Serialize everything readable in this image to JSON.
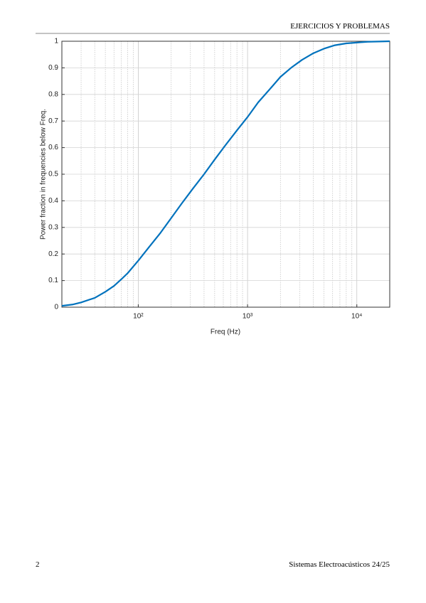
{
  "header": {
    "title": "EJERCICIOS Y PROBLEMAS"
  },
  "footer": {
    "page": "2",
    "course": "Sistemas Electroacústicos 24/25"
  },
  "chart_data": {
    "type": "line",
    "xlabel": "Freq (Hz)",
    "ylabel": "Power fraction in frequencies below Freq.",
    "log_x": true,
    "grid": true,
    "xlim": [
      20,
      20000
    ],
    "ylim": [
      0,
      1
    ],
    "xticks": [
      {
        "value": 100,
        "label": "10²"
      },
      {
        "value": 1000,
        "label": "10³"
      },
      {
        "value": 10000,
        "label": "10⁴"
      }
    ],
    "xminor_ticks": [
      20,
      30,
      40,
      50,
      60,
      70,
      80,
      90,
      200,
      300,
      400,
      500,
      600,
      700,
      800,
      900,
      2000,
      3000,
      4000,
      5000,
      6000,
      7000,
      8000,
      9000,
      20000
    ],
    "yticks": [
      0,
      0.1,
      0.2,
      0.3,
      0.4,
      0.5,
      0.6,
      0.7,
      0.8,
      0.9,
      1
    ],
    "x": [
      20,
      25,
      30,
      40,
      50,
      60,
      70,
      80,
      100,
      125,
      160,
      200,
      250,
      315,
      400,
      500,
      630,
      800,
      1000,
      1250,
      1600,
      2000,
      2500,
      3150,
      4000,
      5000,
      6300,
      8000,
      10000,
      12500,
      16000,
      20000
    ],
    "series": [
      {
        "color": "#0072bd",
        "values": [
          0.005,
          0.01,
          0.018,
          0.035,
          0.058,
          0.08,
          0.105,
          0.128,
          0.175,
          0.225,
          0.28,
          0.335,
          0.39,
          0.445,
          0.5,
          0.555,
          0.61,
          0.665,
          0.715,
          0.77,
          0.82,
          0.866,
          0.9,
          0.93,
          0.955,
          0.972,
          0.985,
          0.992,
          0.995,
          0.998,
          0.999,
          1.0
        ]
      }
    ]
  }
}
